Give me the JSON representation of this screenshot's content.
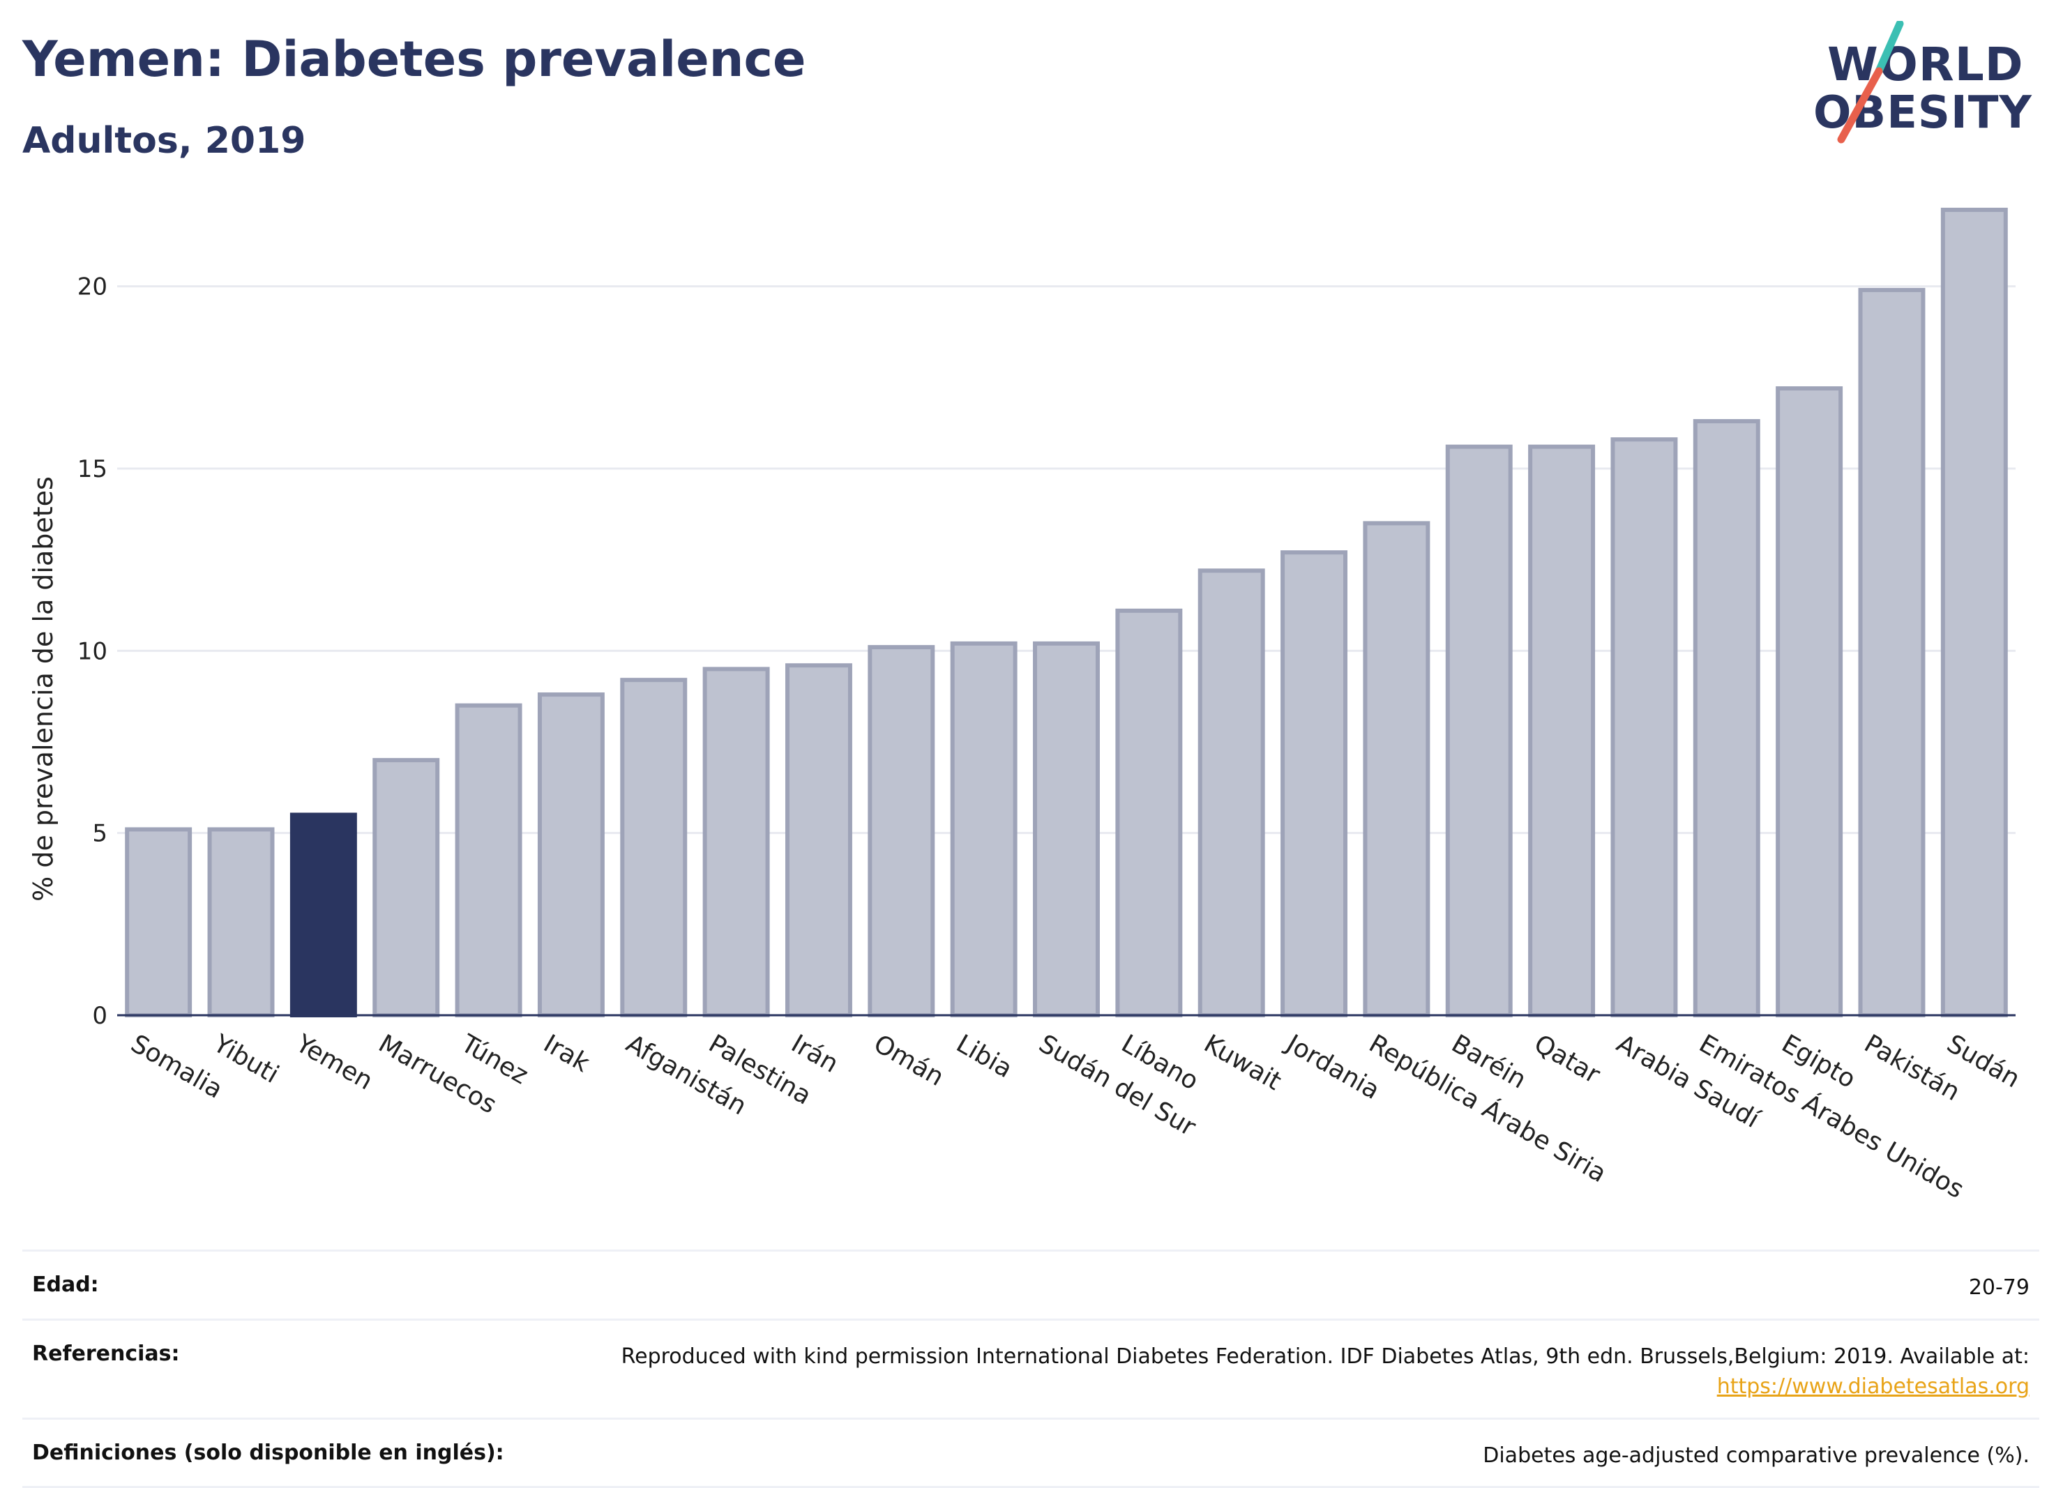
{
  "header": {
    "title": "Yemen: Diabetes prevalence",
    "subtitle": "Adultos, 2019"
  },
  "logo": {
    "line1": "WORLD",
    "line2": "OBESITY",
    "accent_teal": "#3bbfb3",
    "accent_coral": "#e8604c"
  },
  "chart_data": {
    "type": "bar",
    "ylabel": "% de prevalencia de la diabetes",
    "ylim": [
      0,
      22.5
    ],
    "yticks": [
      0,
      5,
      10,
      15,
      20
    ],
    "grid": true,
    "highlight_category": "Yemen",
    "colors": {
      "bar": "#bec2d0",
      "bar_edge": "#9ea3b8",
      "highlight": "#2a3560"
    },
    "categories": [
      "Somalia",
      "Yibuti",
      "Yemen",
      "Marruecos",
      "Túnez",
      "Irak",
      "Afganistán",
      "Palestina",
      "Irán",
      "Omán",
      "Libia",
      "Sudán del Sur",
      "Líbano",
      "Kuwait",
      "Jordania",
      "República Árabe Siria",
      "Baréin",
      "Qatar",
      "Arabia Saudí",
      "Emiratos Árabes Unidos",
      "Egipto",
      "Pakistán",
      "Sudán"
    ],
    "values": [
      5.1,
      5.1,
      5.5,
      7.0,
      8.5,
      8.8,
      9.2,
      9.5,
      9.6,
      10.1,
      10.2,
      10.2,
      11.1,
      12.2,
      12.7,
      13.5,
      15.6,
      15.6,
      15.8,
      16.3,
      17.2,
      19.9,
      22.1
    ]
  },
  "info": {
    "age_label": "Edad:",
    "age_value": "20-79",
    "refs_label": "Referencias:",
    "refs_value": "Reproduced with kind permission International Diabetes Federation. IDF Diabetes Atlas, 9th edn. Brussels,Belgium: 2019. Available at:",
    "refs_link": "https://www.diabetesatlas.org",
    "defs_label": "Definiciones (solo disponible en inglés):",
    "defs_value": "Diabetes age-adjusted comparative prevalence (%)."
  }
}
